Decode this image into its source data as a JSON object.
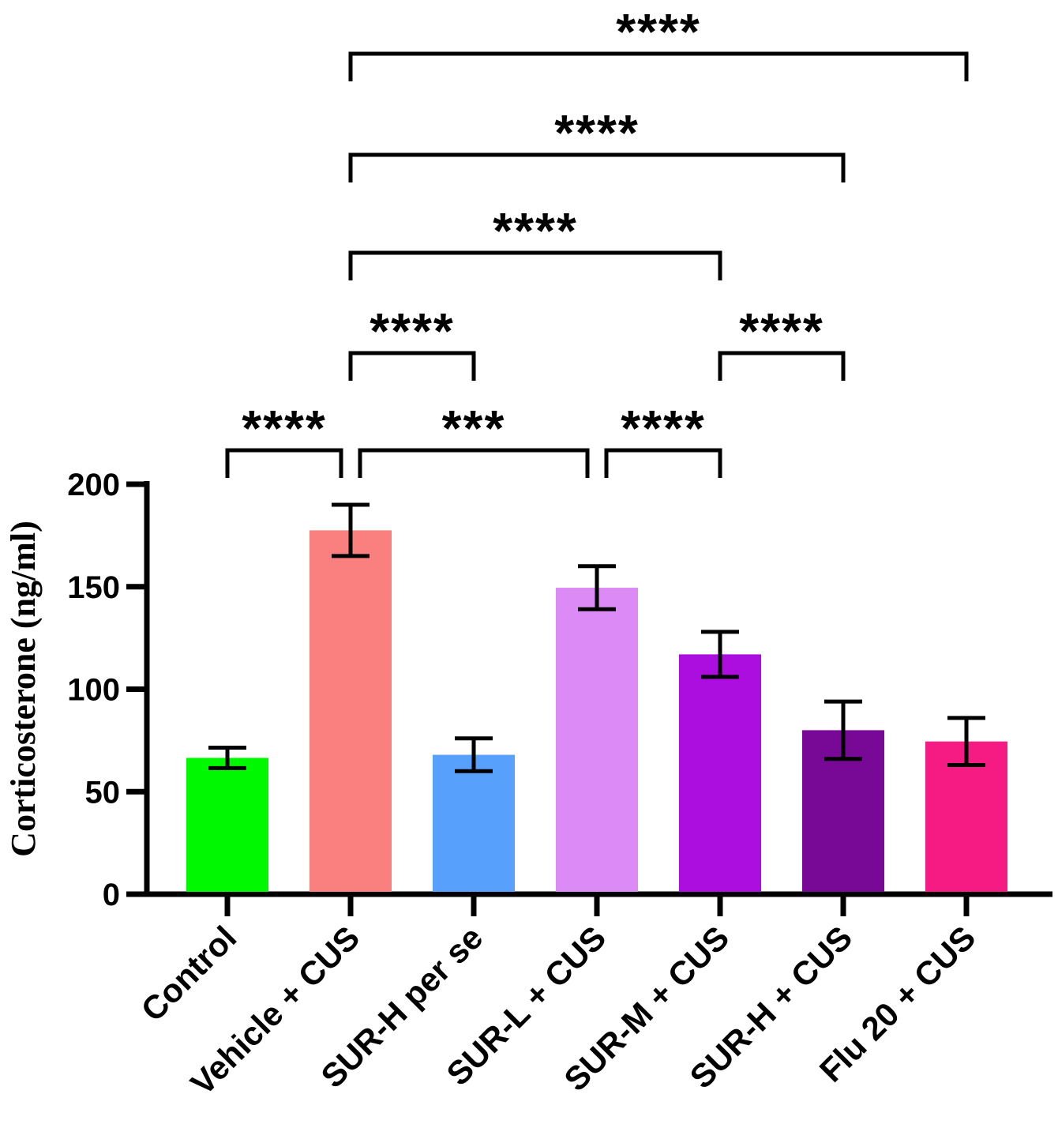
{
  "chart_data": {
    "type": "bar",
    "title": "",
    "xlabel": "",
    "ylabel": "Corticosterone  (ng/ml)",
    "ylim": [
      0,
      200
    ],
    "yticks": [
      0,
      50,
      100,
      150,
      200
    ],
    "categories": [
      "Control",
      "Vehicle + CUS",
      "SUR-H per se",
      "SUR-L + CUS",
      "SUR-M + CUS",
      "SUR-H + CUS",
      "Flu 20 + CUS"
    ],
    "values": [
      66.5,
      177.5,
      68,
      149.5,
      117,
      80,
      74.5
    ],
    "errors": [
      5,
      12.5,
      8,
      10.5,
      11,
      14,
      11.5
    ],
    "colors": [
      "#00f800",
      "#fa8080",
      "#57a0fb",
      "#dc8af5",
      "#ad0ee0",
      "#780896",
      "#f51b82"
    ],
    "comparisons": [
      {
        "from": 0,
        "to": 1,
        "label": "****",
        "level": 0
      },
      {
        "from": 1,
        "to": 3,
        "label": "***",
        "level": 0
      },
      {
        "from": 3,
        "to": 4,
        "label": "****",
        "level": 0
      },
      {
        "from": 1,
        "to": 2,
        "label": "****",
        "level": 1
      },
      {
        "from": 4,
        "to": 5,
        "label": "****",
        "level": 1
      },
      {
        "from": 1,
        "to": 4,
        "label": "****",
        "level": 2
      },
      {
        "from": 1,
        "to": 5,
        "label": "****",
        "level": 3
      },
      {
        "from": 1,
        "to": 6,
        "label": "****",
        "level": 4
      }
    ]
  }
}
